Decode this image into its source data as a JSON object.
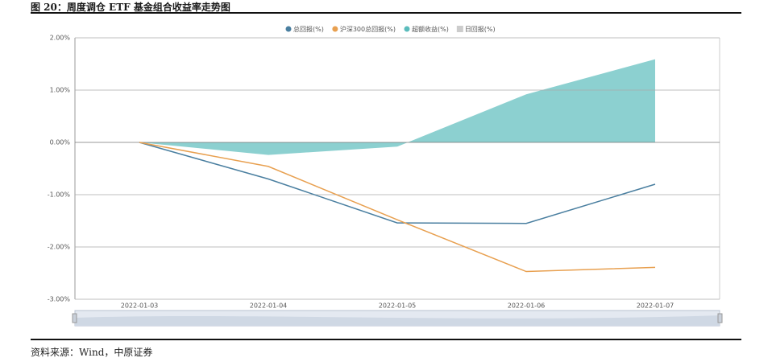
{
  "chart_data": {
    "type": "line",
    "title": "图 20：周度调仓 ETF 基金组合收益率走势图",
    "source": "资料来源：Wind，中原证券",
    "categories": [
      "2022-01-03",
      "2022-01-04",
      "2022-01-05",
      "2022-01-06",
      "2022-01-07"
    ],
    "series": [
      {
        "name": "总回报(%)",
        "color": "#4a7fa0",
        "values": [
          0,
          -0.7,
          -1.54,
          -1.55,
          -0.8
        ]
      },
      {
        "name": "沪深300总回报(%)",
        "color": "#e8a050",
        "values": [
          0,
          -0.46,
          -1.48,
          -2.47,
          -2.39
        ]
      },
      {
        "name": "超额收益(%)",
        "color": "#5bbcbc",
        "area": true,
        "values": [
          0,
          -0.24,
          -0.08,
          0.92,
          1.59
        ]
      }
    ],
    "inactive_legend": {
      "name": "日回报(%)",
      "color": "#cccccc"
    },
    "ylim": [
      -3,
      2
    ],
    "yticks": [
      {
        "value": -3,
        "label": "-3.00%"
      },
      {
        "value": -2,
        "label": "-2.00%"
      },
      {
        "value": -1,
        "label": "-1.00%"
      },
      {
        "value": 0,
        "label": "0.00%"
      },
      {
        "value": 1,
        "label": "1.00%"
      },
      {
        "value": 2,
        "label": "2.00%"
      }
    ],
    "grid": true
  }
}
